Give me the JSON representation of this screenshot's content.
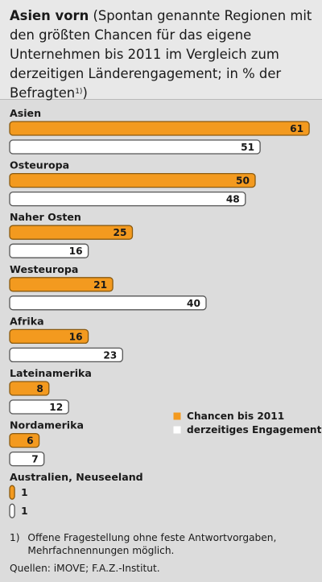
{
  "header": {
    "title_bold": "Asien vorn",
    "title_rest": "(Spontan genannte Regionen mit den größten Chancen für das eigene Unternehmen bis 2011 im Vergleich zum derzeitigen Länderengagement; in % der Befragten",
    "footnote_marker": "1)",
    "close_paren": ")"
  },
  "chart_data": {
    "type": "bar",
    "orientation": "horizontal",
    "categories": [
      "Asien",
      "Osteuropa",
      "Naher Osten",
      "Westeuropa",
      "Afrika",
      "Lateinamerika",
      "Nordamerika",
      "Australien, Neuseeland"
    ],
    "series": [
      {
        "name": "Chancen bis 2011",
        "values": [
          61,
          50,
          25,
          21,
          16,
          8,
          6,
          1
        ],
        "color": "#f39a1f"
      },
      {
        "name": "derzeitiges Engagement",
        "values": [
          51,
          48,
          16,
          40,
          23,
          12,
          7,
          1
        ],
        "color": "#ffffff"
      }
    ],
    "legend_position": "right",
    "grid": false
  },
  "footnote": {
    "marker": "1)",
    "text": "Offene Fragestellung ohne feste Antwortvorgaben, Mehrfachnennungen möglich."
  },
  "sources": "Quellen: iMOVE; F.A.Z.-Institut."
}
